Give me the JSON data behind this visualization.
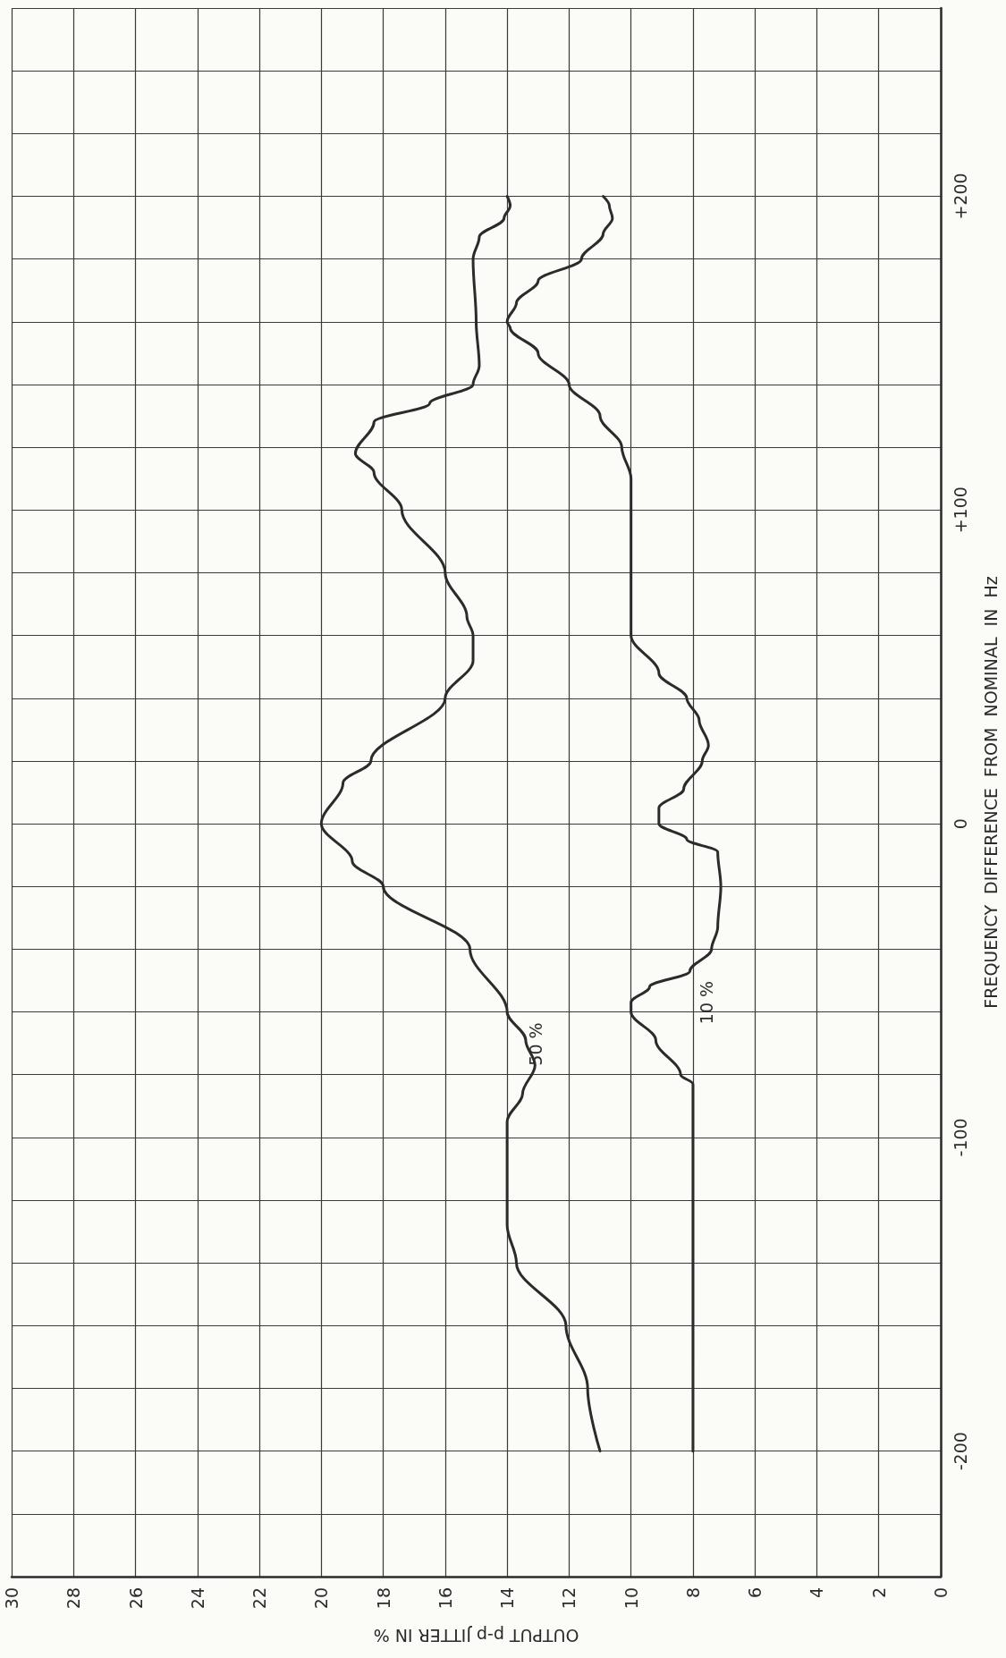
{
  "chart_data": {
    "type": "line",
    "xlabel": "OUTPUT p-p JITTER IN %",
    "ylabel": "FREQUENCY  DIFFERENCE  FROM  NOMINAL  IN  Hz",
    "xlim": [
      30,
      0
    ],
    "ylim": [
      -240,
      260
    ],
    "xticks": [
      0,
      2,
      4,
      6,
      8,
      10,
      12,
      14,
      16,
      18,
      20,
      22,
      24,
      26,
      28,
      30
    ],
    "yticks": [
      {
        "value": -240,
        "label": null
      },
      {
        "value": -220,
        "label": null
      },
      -200,
      {
        "value": -180,
        "label": null
      },
      {
        "value": -160,
        "label": null
      },
      {
        "value": -140,
        "label": null
      },
      {
        "value": -120,
        "label": null
      },
      -100,
      {
        "value": -80,
        "label": null
      },
      {
        "value": -60,
        "label": null
      },
      {
        "value": -40,
        "label": null
      },
      {
        "value": -20,
        "label": null
      },
      0,
      {
        "value": 20,
        "label": null
      },
      {
        "value": 40,
        "label": null
      },
      {
        "value": 60,
        "label": null
      },
      {
        "value": 80,
        "label": null
      },
      {
        "value": 100,
        "label": "+100"
      },
      {
        "value": 120,
        "label": null
      },
      {
        "value": 140,
        "label": null
      },
      {
        "value": 160,
        "label": null
      },
      {
        "value": 180,
        "label": null
      },
      {
        "value": 200,
        "label": "+200"
      },
      {
        "value": 220,
        "label": null
      },
      {
        "value": 240,
        "label": null
      },
      {
        "value": 260,
        "label": null
      }
    ],
    "grid": true,
    "marker": "none",
    "line_style": "solid",
    "series": [
      {
        "name": "50 %",
        "color": "#2b2b2b",
        "values": [
          -200,
          -180,
          -160,
          -140,
          -128,
          -120,
          -95,
          -86,
          -77,
          -69,
          -60,
          -40,
          -20,
          -12,
          0,
          13,
          20,
          40,
          52,
          60,
          66,
          80,
          100,
          112,
          118,
          128,
          134,
          140,
          146,
          160,
          180,
          187,
          193,
          197,
          200
        ],
        "x": [
          11.0,
          11.4,
          12.1,
          13.7,
          14.0,
          14.0,
          14.0,
          13.5,
          13.1,
          13.4,
          14.0,
          15.2,
          18.0,
          19.0,
          20.0,
          19.3,
          18.4,
          16.0,
          15.1,
          15.1,
          15.3,
          16.0,
          17.4,
          18.3,
          18.9,
          18.3,
          16.5,
          15.1,
          14.9,
          15.0,
          15.1,
          14.9,
          14.1,
          13.9,
          14.0
        ]
      },
      {
        "name": "10 %",
        "color": "#2b2b2b",
        "values": [
          -200,
          -150,
          -100,
          -83,
          -80,
          -69,
          -60,
          -57,
          -52,
          -47,
          -40,
          -33,
          -20,
          -9,
          -5,
          0,
          5,
          11,
          20,
          25,
          33,
          40,
          48,
          60,
          66,
          80,
          100,
          110,
          120,
          130,
          140,
          150,
          158,
          160,
          166,
          173,
          180,
          188,
          193,
          197,
          200
        ],
        "x": [
          8.0,
          8.0,
          8.0,
          8.0,
          8.4,
          9.2,
          10.0,
          10.0,
          9.4,
          8.1,
          7.4,
          7.2,
          7.1,
          7.2,
          8.2,
          9.1,
          9.1,
          8.3,
          7.7,
          7.5,
          7.8,
          8.2,
          9.1,
          10.0,
          10.0,
          10.0,
          10.0,
          10.0,
          10.3,
          11.0,
          12.0,
          13.0,
          13.9,
          14.0,
          13.7,
          13.0,
          11.6,
          10.9,
          10.6,
          10.7,
          10.9
        ]
      }
    ]
  }
}
